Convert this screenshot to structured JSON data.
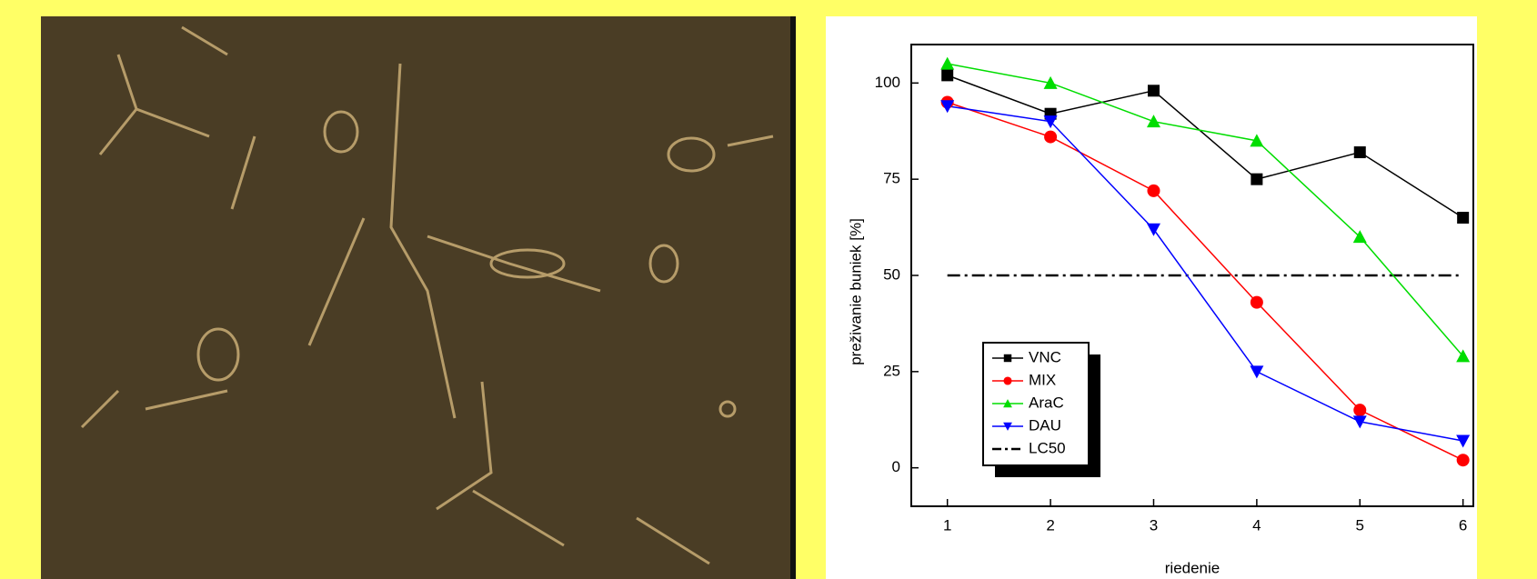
{
  "chart_data": {
    "type": "line",
    "x_label": "riedenie",
    "y_label": "preživanie buniek [%]",
    "x": [
      1,
      2,
      3,
      4,
      5,
      6
    ],
    "series": [
      {
        "name": "VNC",
        "color": "#000000",
        "marker": "square",
        "values": [
          102,
          92,
          98,
          75,
          82,
          65
        ]
      },
      {
        "name": "MIX",
        "color": "#ff0000",
        "marker": "circle",
        "values": [
          95,
          86,
          72,
          43,
          15,
          2
        ]
      },
      {
        "name": "AraC",
        "color": "#00dd00",
        "marker": "triangle-up",
        "values": [
          105,
          100,
          90,
          85,
          60,
          29
        ]
      },
      {
        "name": "DAU",
        "color": "#0000ff",
        "marker": "triangle-down",
        "values": [
          94,
          90,
          62,
          25,
          12,
          7
        ]
      }
    ],
    "reference_lines": [
      {
        "name": "LC50",
        "value": 50,
        "color": "#000000",
        "style": "dash-dot"
      }
    ],
    "xlim": [
      0.65,
      6.1
    ],
    "ylim": [
      -10,
      110
    ],
    "xticks": [
      1,
      2,
      3,
      4,
      5,
      6
    ],
    "yticks": [
      0,
      25,
      50,
      75,
      100
    ],
    "grid": false,
    "legend": "lower left"
  }
}
